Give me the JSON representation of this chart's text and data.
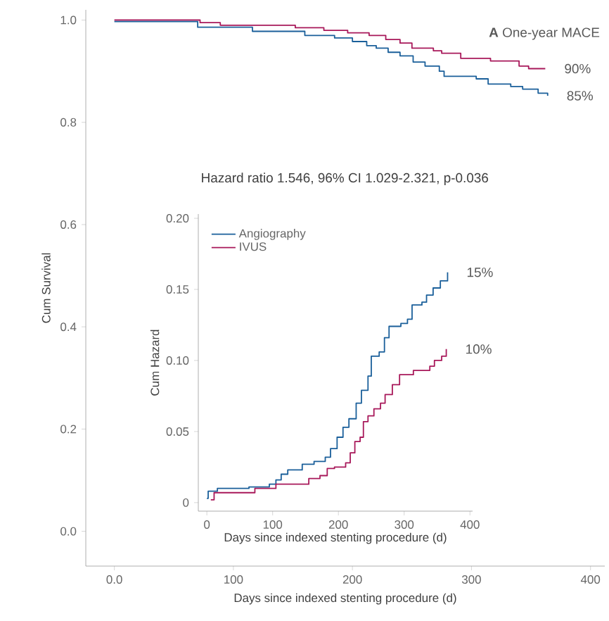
{
  "chart_data": [
    {
      "type": "step",
      "title": "**A** One-year MACE",
      "xlabel": "Days since indexed stenting procedure (d)",
      "ylabel": "Cum Survival",
      "xlim": [
        -24,
        412
      ],
      "xticks": [
        {
          "value": 0,
          "label": "0.0"
        },
        100,
        200,
        300,
        400
      ],
      "ylim": [
        -0.068,
        1.02
      ],
      "yticks": [
        {
          "value": 0,
          "label": "0.0"
        },
        0.2,
        0.4,
        0.6,
        0.8,
        {
          "value": 1,
          "label": "1.0"
        }
      ],
      "series": [
        {
          "color": "#a8185a",
          "x": [
            0,
            72,
            89,
            152,
            176,
            196,
            214,
            228,
            240,
            250,
            268,
            275,
            291,
            316,
            340,
            348,
            362
          ],
          "values": [
            1.0,
            0.995,
            0.99,
            0.985,
            0.98,
            0.975,
            0.97,
            0.962,
            0.955,
            0.945,
            0.94,
            0.935,
            0.925,
            0.92,
            0.91,
            0.905,
            0.905
          ]
        },
        {
          "color": "#1a5f9a",
          "x": [
            0,
            70,
            116,
            160,
            185,
            200,
            212,
            220,
            230,
            240,
            251,
            261,
            273,
            277,
            304,
            314,
            333,
            343,
            356,
            364
          ],
          "values": [
            0.997,
            0.986,
            0.978,
            0.97,
            0.965,
            0.958,
            0.95,
            0.945,
            0.937,
            0.93,
            0.918,
            0.91,
            0.9,
            0.89,
            0.885,
            0.875,
            0.87,
            0.865,
            0.857,
            0.852
          ]
        }
      ],
      "annotations": [
        "Hazard ratio 1.546, 96% CI 1.029-2.321, p-0.036",
        {
          "text": "90%",
          "x": 362,
          "y": 0.905
        },
        {
          "text": "85%",
          "x": 364,
          "y": 0.852
        }
      ]
    },
    {
      "type": "step",
      "xlabel": "Days since indexed stenting procedure (d)",
      "ylabel": "Cum Hazard",
      "legend": "top left",
      "xlim": [
        -13,
        404
      ],
      "xticks": [
        0,
        100,
        200,
        300,
        400
      ],
      "ylim": [
        -0.006,
        0.203
      ],
      "yticks": [
        {
          "value": 0,
          "label": "0"
        },
        0.05,
        {
          "value": 0.1,
          "label": "0.10"
        },
        0.15,
        {
          "value": 0.2,
          "label": "0.20"
        }
      ],
      "series": [
        {
          "name": "Angiography",
          "color": "#1a5f9a",
          "x": [
            0,
            2,
            16,
            64,
            95,
            105,
            113,
            123,
            145,
            163,
            180,
            188,
            198,
            207,
            216,
            227,
            235,
            245,
            250,
            262,
            270,
            277,
            295,
            305,
            312,
            327,
            334,
            344,
            355,
            366
          ],
          "values": [
            0.003,
            0.008,
            0.01,
            0.011,
            0.013,
            0.016,
            0.02,
            0.023,
            0.027,
            0.029,
            0.032,
            0.038,
            0.046,
            0.053,
            0.059,
            0.07,
            0.079,
            0.089,
            0.103,
            0.106,
            0.116,
            0.124,
            0.126,
            0.129,
            0.139,
            0.141,
            0.146,
            0.151,
            0.156,
            0.162
          ]
        },
        {
          "name": "IVUS",
          "color": "#a8185a",
          "x": [
            6,
            11,
            73,
            105,
            155,
            172,
            183,
            194,
            211,
            218,
            225,
            233,
            238,
            245,
            254,
            264,
            271,
            282,
            293,
            314,
            339,
            346,
            357,
            364
          ],
          "values": [
            0.002,
            0.007,
            0.01,
            0.013,
            0.017,
            0.019,
            0.024,
            0.025,
            0.028,
            0.035,
            0.043,
            0.046,
            0.057,
            0.061,
            0.066,
            0.07,
            0.076,
            0.083,
            0.09,
            0.093,
            0.096,
            0.1,
            0.103,
            0.108
          ]
        }
      ],
      "annotations": [
        {
          "text": "15%",
          "x": 366,
          "y": 0.162
        },
        {
          "text": "10%",
          "x": 364,
          "y": 0.108
        }
      ]
    }
  ]
}
